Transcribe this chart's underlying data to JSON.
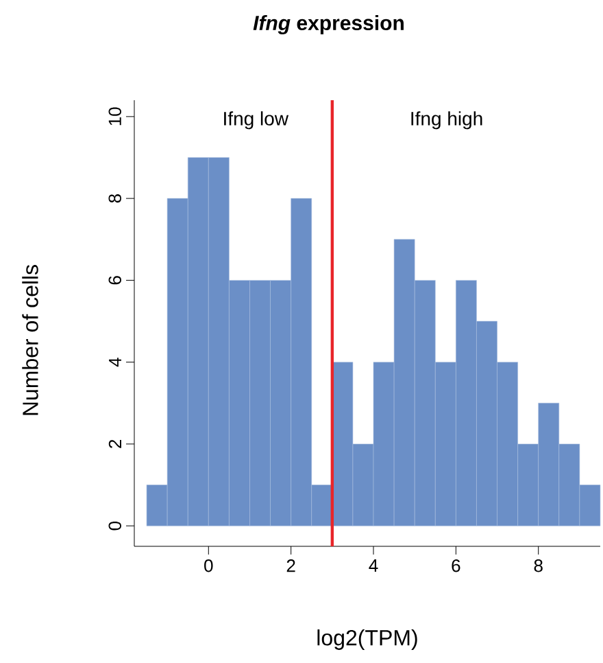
{
  "chart_data": {
    "type": "histogram",
    "title": "*Ifng* expression",
    "xlabel": "log2(TPM)",
    "ylabel": "Number of cells",
    "annotations": [
      "Ifng low",
      "Ifng high"
    ],
    "bins": [
      -1.5,
      -1,
      -0.5,
      0,
      0.5,
      1,
      1.5,
      2,
      2.5,
      3,
      3.5,
      4,
      4.5,
      5,
      5.5,
      6,
      6.5,
      7,
      7.5,
      8,
      8.5,
      9,
      9.5
    ],
    "values": [
      1,
      8,
      9,
      9,
      6,
      6,
      6,
      8,
      1,
      4,
      2,
      4,
      7,
      6,
      4,
      6,
      5,
      4,
      2,
      3,
      2,
      1
    ],
    "color": "#6b8fc7",
    "xlim": [
      -1.8,
      9.5
    ],
    "ylim": [
      -0.5,
      10.4
    ],
    "xticks": [
      0,
      2,
      4,
      6,
      8
    ],
    "yticks": [
      0,
      2,
      4,
      6,
      8,
      10
    ],
    "ref_lines": [
      {
        "axis": "x",
        "value": 3,
        "color": "#e8262a"
      }
    ],
    "grid": false
  }
}
